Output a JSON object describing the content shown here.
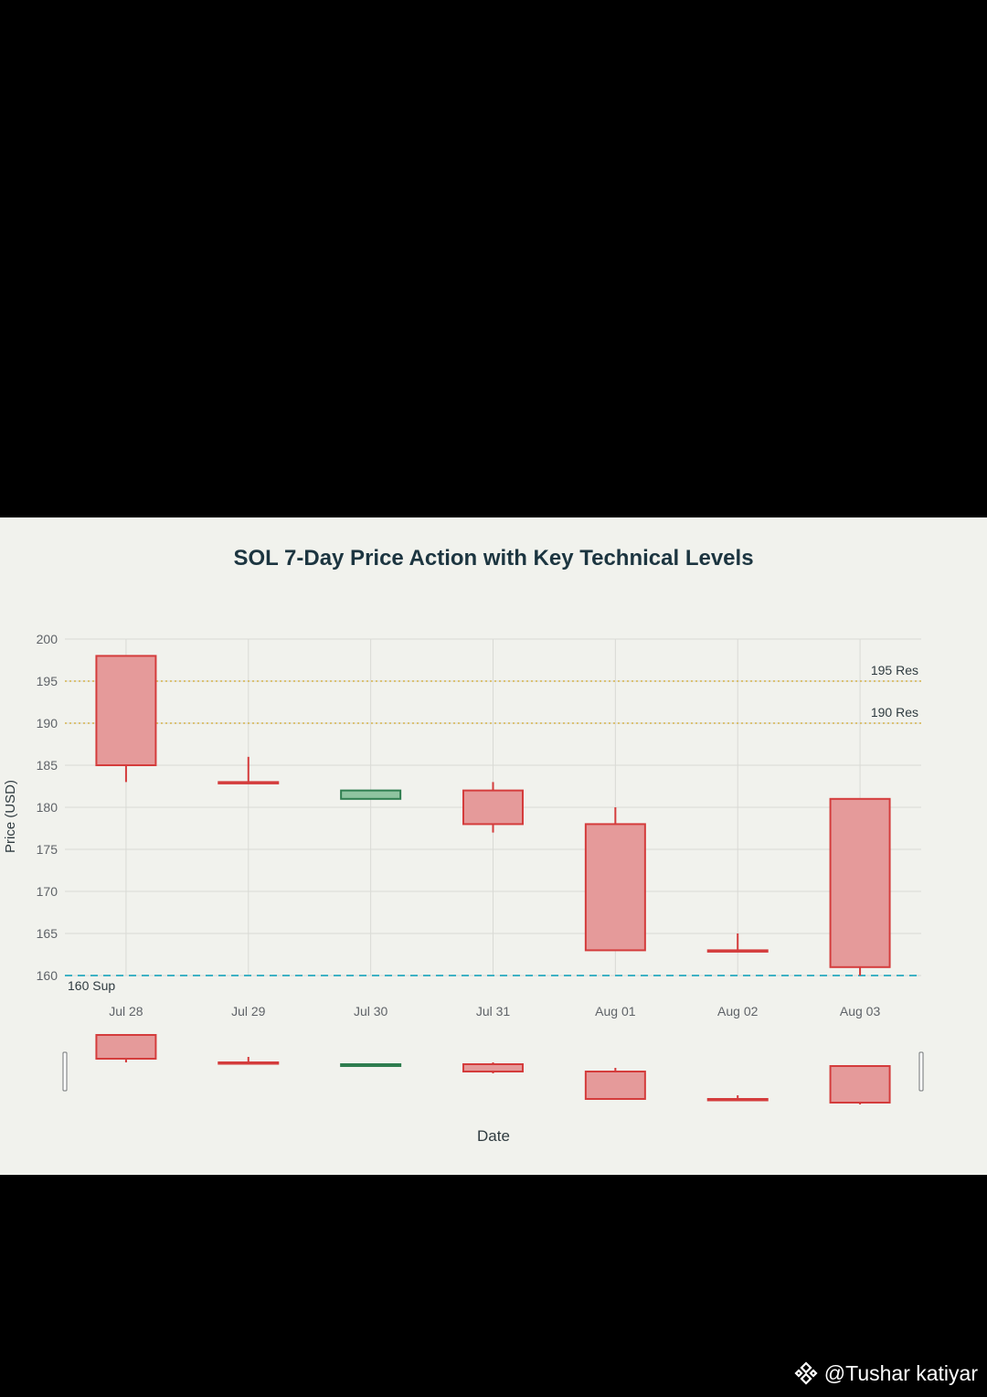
{
  "chart_data": {
    "type": "candlestick",
    "title": "SOL 7-Day Price Action with Key Technical Levels",
    "xlabel": "Date",
    "ylabel": "Price (USD)",
    "ylim": [
      160,
      200
    ],
    "yticks": [
      200,
      195,
      190,
      185,
      180,
      175,
      170,
      165,
      160
    ],
    "grid": true,
    "categories": [
      "Jul 28",
      "Jul 29",
      "Jul 30",
      "Jul 31",
      "Aug 01",
      "Aug 02",
      "Aug 03"
    ],
    "candles": [
      {
        "date": "Jul 28",
        "open": 198,
        "high": 198,
        "low": 183,
        "close": 185
      },
      {
        "date": "Jul 29",
        "open": 183,
        "high": 186,
        "low": 183,
        "close": 183
      },
      {
        "date": "Jul 30",
        "open": 181,
        "high": 182,
        "low": 181,
        "close": 182
      },
      {
        "date": "Jul 31",
        "open": 182,
        "high": 183,
        "low": 177,
        "close": 178
      },
      {
        "date": "Aug 01",
        "open": 178,
        "high": 180,
        "low": 163,
        "close": 163
      },
      {
        "date": "Aug 02",
        "open": 163,
        "high": 165,
        "low": 163,
        "close": 163
      },
      {
        "date": "Aug 03",
        "open": 181,
        "high": 181,
        "low": 160,
        "close": 161
      }
    ],
    "levels": [
      {
        "value": 195,
        "label": "195 Res",
        "kind": "resistance",
        "color": "#d4b24c"
      },
      {
        "value": 190,
        "label": "190 Res",
        "kind": "resistance",
        "color": "#d4b24c"
      },
      {
        "value": 160,
        "label": "160 Sup",
        "kind": "support",
        "color": "#3fb2c4"
      }
    ],
    "colors": {
      "up_fill": "#8fc4a0",
      "up_line": "#2e7d4f",
      "down_fill": "#e59a9a",
      "down_line": "#d43c3c",
      "grid": "#d9dad5",
      "axis_text": "#5f6368",
      "title": "#1c3540"
    },
    "range_slider": true
  },
  "watermark": {
    "text": "@Tushar katiyar",
    "icon": "binance-logo-icon"
  }
}
